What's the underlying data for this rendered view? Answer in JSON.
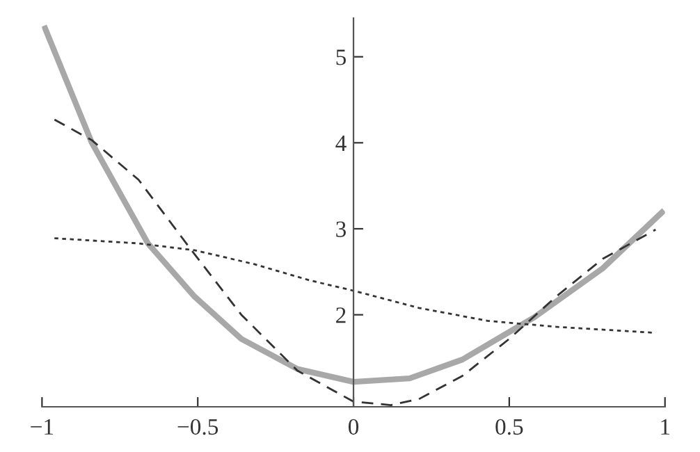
{
  "chart_data": {
    "type": "line",
    "xlim": [
      -1,
      1
    ],
    "ylim": [
      0.93,
      5.45
    ],
    "xticks": [
      {
        "value": -1,
        "label": "−1"
      },
      {
        "value": -0.5,
        "label": "−0.5"
      },
      0,
      0.5,
      1
    ],
    "yticks": [
      2,
      3,
      4,
      5
    ],
    "grid": false,
    "legend": false,
    "series": [
      {
        "color": "#a8a8a8",
        "line_style": "solid",
        "x": [
          -0.99,
          -0.84,
          -0.66,
          -0.51,
          -0.36,
          -0.18,
          0,
          0.18,
          0.35,
          0.5,
          0.58,
          0.8,
          0.99
        ],
        "values": [
          5.33,
          4.0,
          2.83,
          2.21,
          1.72,
          1.37,
          1.22,
          1.26,
          1.48,
          1.8,
          1.97,
          2.54,
          3.19
        ]
      },
      {
        "color": "#333333",
        "line_style": "dashed",
        "x": [
          -0.96,
          -0.84,
          -0.69,
          -0.52,
          -0.36,
          -0.18,
          0,
          0.12,
          0.21,
          0.35,
          0.5,
          0.65,
          0.8,
          0.97
        ],
        "values": [
          4.27,
          4.03,
          3.57,
          2.75,
          2.0,
          1.35,
          0.99,
          0.95,
          1.02,
          1.29,
          1.72,
          2.21,
          2.65,
          2.99
        ]
      },
      {
        "color": "#333333",
        "line_style": "dotted",
        "x": [
          -0.96,
          -0.69,
          -0.51,
          -0.32,
          -0.14,
          0,
          0.21,
          0.43,
          0.65,
          0.97
        ],
        "values": [
          2.89,
          2.83,
          2.75,
          2.59,
          2.4,
          2.28,
          2.08,
          1.93,
          1.86,
          1.79
        ]
      }
    ]
  }
}
